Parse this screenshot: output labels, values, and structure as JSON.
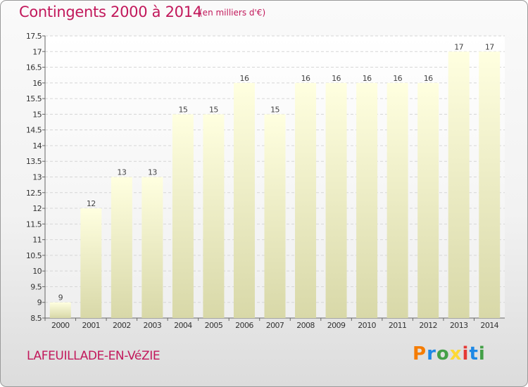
{
  "header": {
    "title": "Contingents 2000 à 2014",
    "subtitle": "(en milliers d'€)"
  },
  "footer": {
    "place": "LAFEUILLADE-EN-VéZIE",
    "logo": "Proxiti"
  },
  "colors": {
    "title": "#c2185b",
    "bar_top": "#ffffe0",
    "bar_bottom": "#d8d8a8",
    "logo_letters": [
      "#f57c00",
      "#1e88e5",
      "#43a047",
      "#fdd835",
      "#e53935",
      "#1e88e5",
      "#43a047"
    ]
  },
  "chart_data": {
    "type": "bar",
    "title": "Contingents 2000 à 2014",
    "subtitle": "(en milliers d'€)",
    "xlabel": "",
    "ylabel": "",
    "categories": [
      "2000",
      "2001",
      "2002",
      "2003",
      "2004",
      "2005",
      "2006",
      "2007",
      "2008",
      "2009",
      "2010",
      "2011",
      "2012",
      "2013",
      "2014"
    ],
    "values": [
      9,
      12,
      13,
      13,
      15,
      15,
      16,
      15,
      16,
      16,
      16,
      16,
      16,
      17,
      17
    ],
    "data_labels": [
      "9",
      "12",
      "13",
      "13",
      "15",
      "15",
      "16",
      "15",
      "16",
      "16",
      "16",
      "16",
      "16",
      "17",
      "17"
    ],
    "ylim": [
      8.5,
      17.5
    ],
    "yticks": [
      8.5,
      9,
      9.5,
      10,
      10.5,
      11,
      11.5,
      12,
      12.5,
      13,
      13.5,
      14,
      14.5,
      15,
      15.5,
      16,
      16.5,
      17,
      17.5
    ],
    "ytick_labels": [
      "8.5",
      "9",
      "9.5",
      "10",
      "10.5",
      "11",
      "11.5",
      "12",
      "12.5",
      "13",
      "13.5",
      "14",
      "14.5",
      "15",
      "15.5",
      "16",
      "16.5",
      "17",
      "17.5"
    ],
    "grid": true,
    "legend": "none"
  }
}
